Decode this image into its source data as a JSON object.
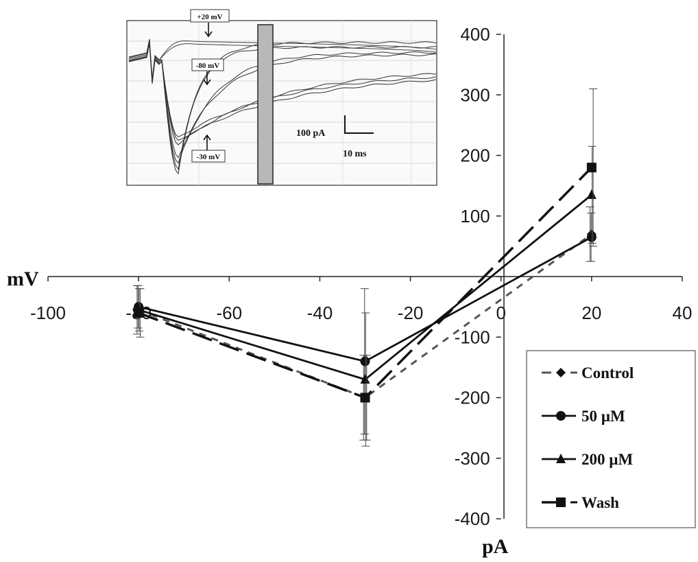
{
  "chart_data": {
    "type": "line",
    "xlabel": "mV",
    "ylabel": "pA",
    "xlim": [
      -100,
      40
    ],
    "ylim": [
      -400,
      400
    ],
    "x_ticks": [
      "-100",
      "-80",
      "-60",
      "-40",
      "-20",
      "0",
      "20",
      "40"
    ],
    "y_ticks": [
      "400",
      "300",
      "200",
      "100",
      "0",
      "-100",
      "-200",
      "-300",
      "-400"
    ],
    "x": [
      -80,
      -30,
      20
    ],
    "series": [
      {
        "name": "Control",
        "marker": "diamond",
        "dash": "dashed-short",
        "values": [
          -55,
          -200,
          70
        ],
        "errors": [
          40,
          70,
          45
        ]
      },
      {
        "name": "50  µM",
        "marker": "circle",
        "dash": "solid",
        "values": [
          -50,
          -140,
          65
        ],
        "errors": [
          35,
          120,
          40
        ]
      },
      {
        "name": "200 µM",
        "marker": "triangle",
        "dash": "solid",
        "values": [
          -55,
          -170,
          135
        ],
        "errors": [
          35,
          110,
          80
        ]
      },
      {
        "name": "Wash",
        "marker": "square",
        "dash": "dashed-long",
        "values": [
          -60,
          -200,
          180
        ],
        "errors": [
          40,
          70,
          130
        ]
      }
    ],
    "legend_position": "bottom-right",
    "inset": {
      "labels": [
        "+20 mV",
        "-80 mV",
        "-30 mV"
      ],
      "scalebar_y": "100 pA",
      "scalebar_x": "10 ms"
    }
  }
}
